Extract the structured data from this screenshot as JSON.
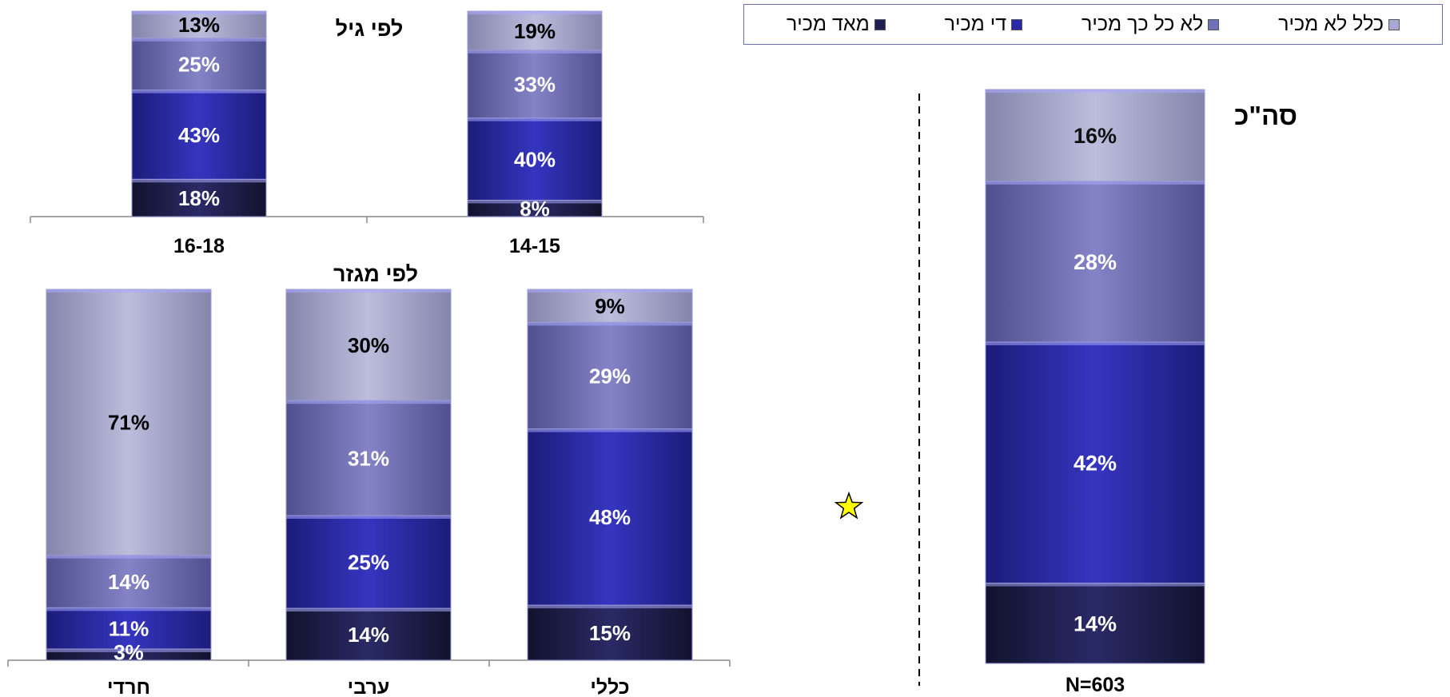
{
  "legend": [
    {
      "label": "כלל לא מכיר",
      "color": "#a9a9cf"
    },
    {
      "label": "לא כל כך מכיר",
      "color": "#6f6fba"
    },
    {
      "label": "די מכיר",
      "color": "#2a2aa8"
    },
    {
      "label": "מאד מכיר",
      "color": "#1e1e55"
    }
  ],
  "total_panel": {
    "title": "סה\"כ",
    "n_label": "N=603"
  },
  "age_panel": {
    "title": "לפי גיל"
  },
  "sector_panel": {
    "title": "לפי מגזר"
  },
  "chart_data": [
    {
      "type": "bar",
      "stacked": true,
      "title": "סה\"כ",
      "categories": [
        "N=603"
      ],
      "series": [
        {
          "name": "מאד מכיר",
          "values": [
            14
          ]
        },
        {
          "name": "די מכיר",
          "values": [
            42
          ]
        },
        {
          "name": "לא כל כך מכיר",
          "values": [
            28
          ]
        },
        {
          "name": "כלל לא מכיר",
          "values": [
            16
          ]
        }
      ]
    },
    {
      "type": "bar",
      "stacked": true,
      "title": "לפי גיל",
      "categories": [
        "16-18",
        "14-15"
      ],
      "series": [
        {
          "name": "מאד מכיר",
          "values": [
            18,
            8
          ]
        },
        {
          "name": "די מכיר",
          "values": [
            43,
            40
          ]
        },
        {
          "name": "לא כל כך מכיר",
          "values": [
            25,
            33
          ]
        },
        {
          "name": "כלל לא מכיר",
          "values": [
            13,
            19
          ]
        }
      ]
    },
    {
      "type": "bar",
      "stacked": true,
      "title": "לפי מגזר",
      "categories": [
        "חרדי",
        "ערבי",
        "כללי"
      ],
      "series": [
        {
          "name": "מאד מכיר",
          "values": [
            3,
            14,
            15
          ]
        },
        {
          "name": "די מכיר",
          "values": [
            11,
            25,
            48
          ]
        },
        {
          "name": "לא כל כך מכיר",
          "values": [
            14,
            31,
            29
          ]
        },
        {
          "name": "כלל לא מכיר",
          "values": [
            71,
            30,
            9
          ]
        }
      ]
    }
  ]
}
